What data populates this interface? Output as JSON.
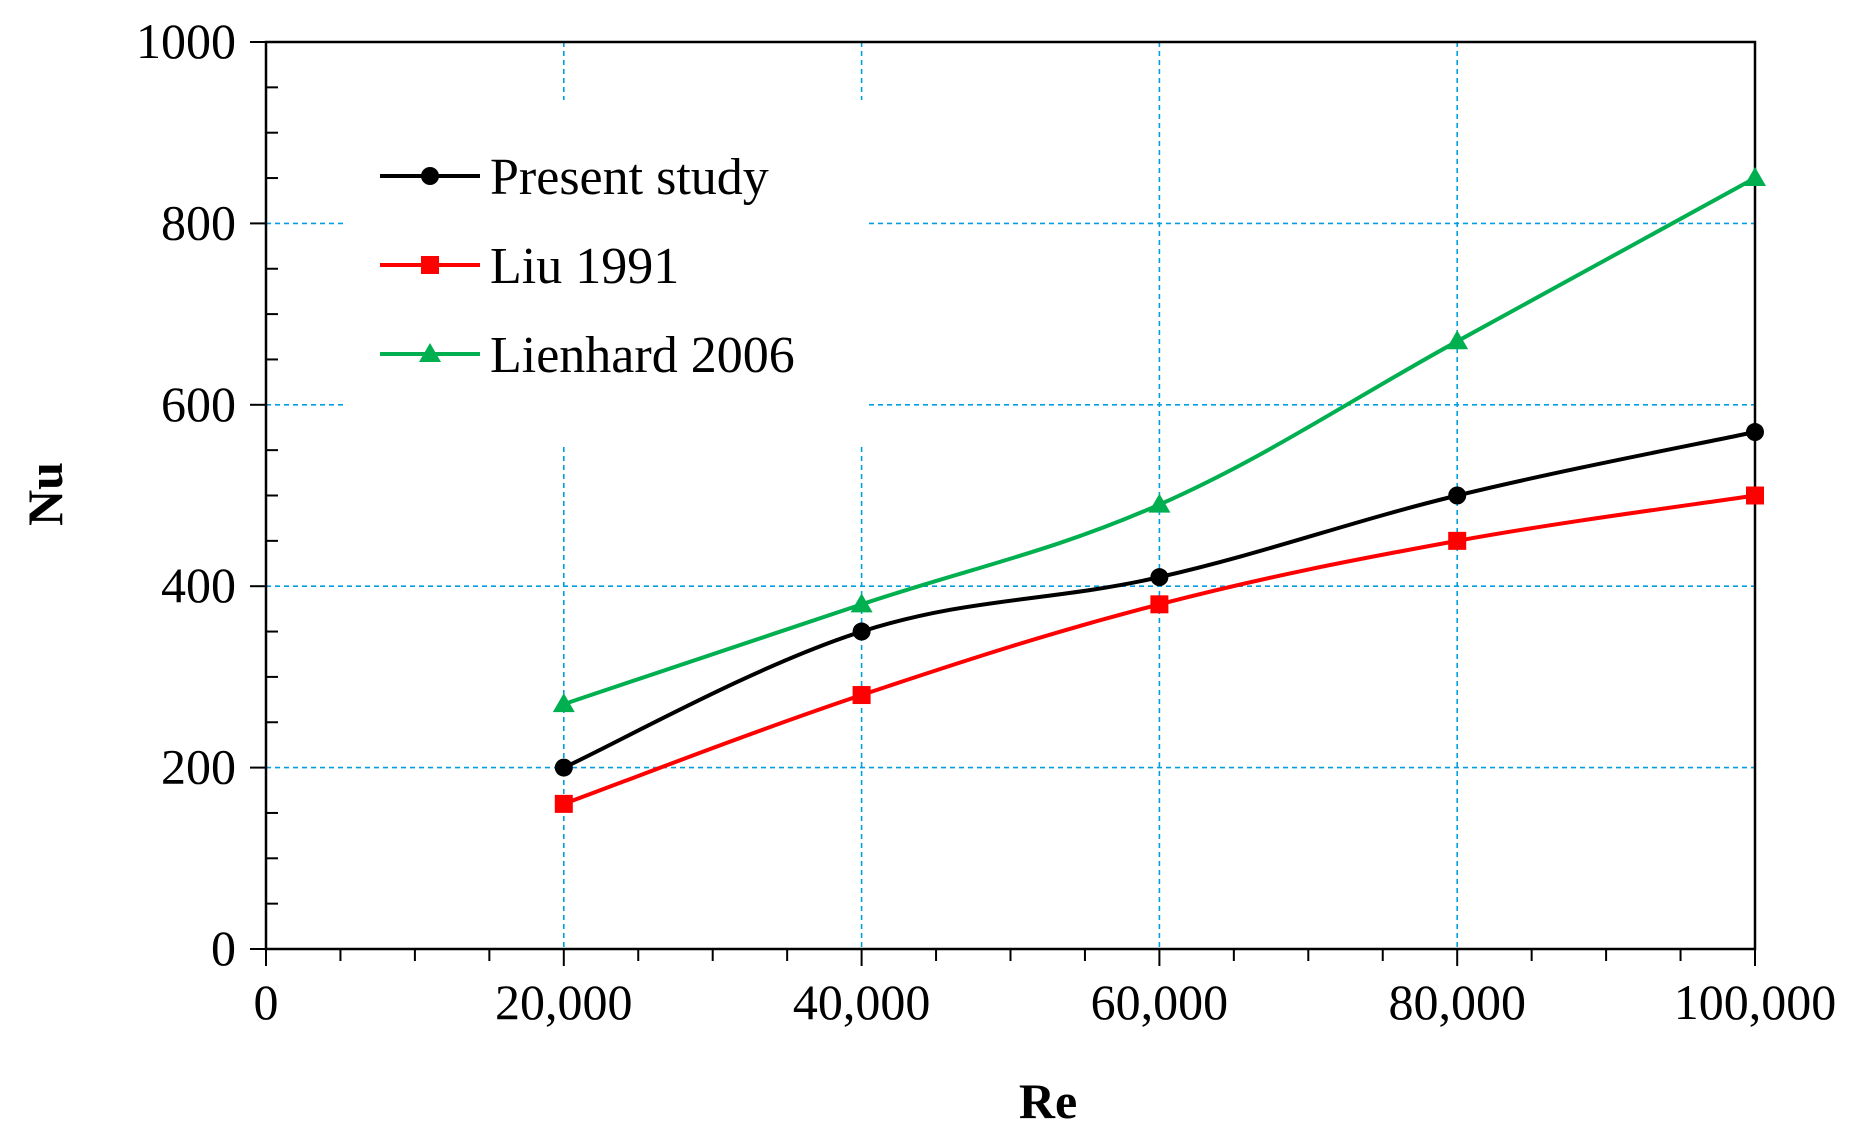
{
  "chart_data": {
    "type": "line",
    "title": "",
    "xlabel": "Re",
    "ylabel": "Nu",
    "xlim": [
      0,
      100000
    ],
    "ylim": [
      0,
      1000
    ],
    "x_major_ticks": [
      0,
      20000,
      40000,
      60000,
      80000,
      100000
    ],
    "x_tick_labels": [
      "0",
      "20,000",
      "40,000",
      "60,000",
      "80,000",
      "100,000"
    ],
    "y_major_ticks": [
      0,
      200,
      400,
      600,
      800,
      1000
    ],
    "y_tick_labels": [
      "0",
      "200",
      "400",
      "600",
      "800",
      "1000"
    ],
    "x_minor_step": 5000,
    "y_minor_step": 50,
    "grid": true,
    "legend_position": "top-left",
    "x": [
      20000,
      40000,
      60000,
      80000,
      100000
    ],
    "series": [
      {
        "name": "Present study",
        "color": "#000000",
        "marker": "circle",
        "values": [
          200,
          350,
          410,
          500,
          570
        ]
      },
      {
        "name": "Liu 1991",
        "color": "#ff0000",
        "marker": "square",
        "values": [
          160,
          280,
          380,
          450,
          500
        ]
      },
      {
        "name": "Lienhard 2006",
        "color": "#00b050",
        "marker": "triangle",
        "values": [
          270,
          380,
          490,
          670,
          850
        ]
      }
    ],
    "grid_color": "#00a0e0"
  }
}
